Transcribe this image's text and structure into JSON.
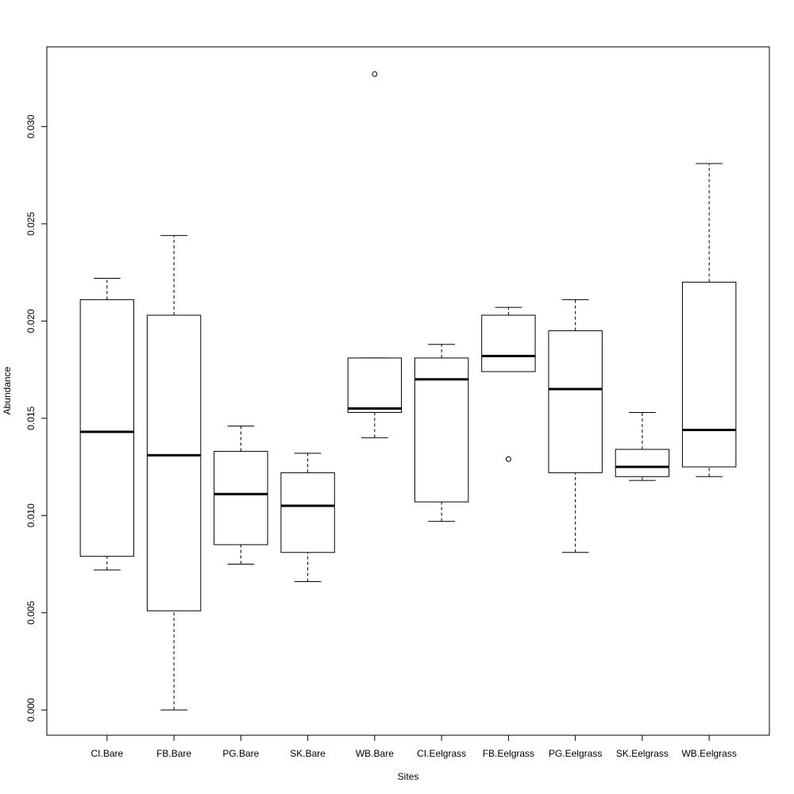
{
  "chart_data": {
    "type": "boxplot",
    "title": "",
    "xlabel": "Sites",
    "ylabel": "Abundance",
    "ylim": [
      -0.0013,
      0.0341
    ],
    "y_ticks": [
      0.0,
      0.005,
      0.01,
      0.015,
      0.02,
      0.025,
      0.03
    ],
    "y_tick_labels": [
      "0.000",
      "0.005",
      "0.010",
      "0.015",
      "0.020",
      "0.025",
      "0.030"
    ],
    "grid": false,
    "categories": [
      "CI.Bare",
      "FB.Bare",
      "PG.Bare",
      "SK.Bare",
      "WB.Bare",
      "CI.Eelgrass",
      "FB.Eelgrass",
      "PG.Eelgrass",
      "SK.Eelgrass",
      "WB.Eelgrass"
    ],
    "boxes": [
      {
        "label": "CI.Bare",
        "whisker_low": 0.0072,
        "q1": 0.0079,
        "median": 0.0143,
        "q3": 0.0211,
        "whisker_high": 0.0222,
        "outliers": []
      },
      {
        "label": "FB.Bare",
        "whisker_low": 0.0,
        "q1": 0.0051,
        "median": 0.0131,
        "q3": 0.0203,
        "whisker_high": 0.0244,
        "outliers": []
      },
      {
        "label": "PG.Bare",
        "whisker_low": 0.0075,
        "q1": 0.0085,
        "median": 0.0111,
        "q3": 0.0133,
        "whisker_high": 0.0146,
        "outliers": []
      },
      {
        "label": "SK.Bare",
        "whisker_low": 0.0066,
        "q1": 0.0081,
        "median": 0.0105,
        "q3": 0.0122,
        "whisker_high": 0.0132,
        "outliers": []
      },
      {
        "label": "WB.Bare",
        "whisker_low": 0.014,
        "q1": 0.0153,
        "median": 0.0155,
        "q3": 0.0181,
        "whisker_high": 0.0181,
        "outliers": [
          0.0327
        ]
      },
      {
        "label": "CI.Eelgrass",
        "whisker_low": 0.0097,
        "q1": 0.0107,
        "median": 0.017,
        "q3": 0.0181,
        "whisker_high": 0.0188,
        "outliers": []
      },
      {
        "label": "FB.Eelgrass",
        "whisker_low": 0.0174,
        "q1": 0.0174,
        "median": 0.0182,
        "q3": 0.0203,
        "whisker_high": 0.0207,
        "outliers": [
          0.0129
        ]
      },
      {
        "label": "PG.Eelgrass",
        "whisker_low": 0.0081,
        "q1": 0.0122,
        "median": 0.0165,
        "q3": 0.0195,
        "whisker_high": 0.0211,
        "outliers": []
      },
      {
        "label": "SK.Eelgrass",
        "whisker_low": 0.0118,
        "q1": 0.012,
        "median": 0.0125,
        "q3": 0.0134,
        "whisker_high": 0.0153,
        "outliers": []
      },
      {
        "label": "WB.Eelgrass",
        "whisker_low": 0.012,
        "q1": 0.0125,
        "median": 0.0144,
        "q3": 0.022,
        "whisker_high": 0.0281,
        "outliers": []
      }
    ]
  }
}
